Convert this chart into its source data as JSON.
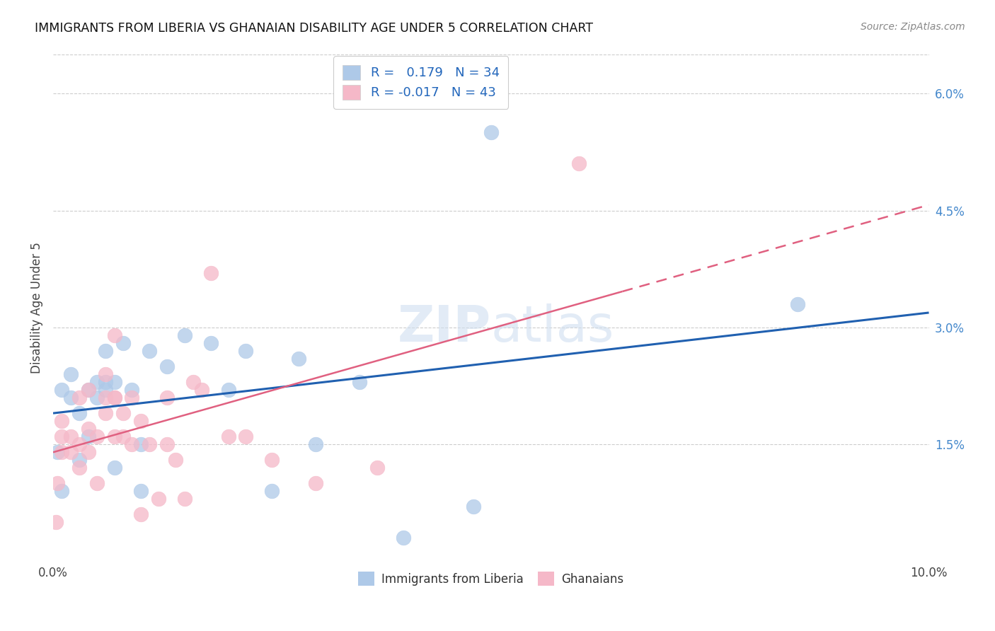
{
  "title": "IMMIGRANTS FROM LIBERIA VS GHANAIAN DISABILITY AGE UNDER 5 CORRELATION CHART",
  "source": "Source: ZipAtlas.com",
  "ylabel": "Disability Age Under 5",
  "xlim": [
    0.0,
    0.1
  ],
  "ylim": [
    0.0,
    0.065
  ],
  "xticks": [
    0.0,
    0.02,
    0.04,
    0.06,
    0.08,
    0.1
  ],
  "xticklabels": [
    "0.0%",
    "",
    "",
    "",
    "",
    "10.0%"
  ],
  "yticks_right": [
    0.015,
    0.03,
    0.045,
    0.06
  ],
  "yticklabels_right": [
    "1.5%",
    "3.0%",
    "4.5%",
    "6.0%"
  ],
  "grid_color": "#cccccc",
  "background_color": "#ffffff",
  "liberia_color": "#aec9e8",
  "ghana_color": "#f5b8c8",
  "liberia_line_color": "#2060b0",
  "ghana_line_color": "#e06080",
  "legend_R_liberia": "0.179",
  "legend_N_liberia": "34",
  "legend_R_ghana": "-0.017",
  "legend_N_ghana": "43",
  "liberia_x": [
    0.0005,
    0.001,
    0.001,
    0.002,
    0.002,
    0.003,
    0.003,
    0.004,
    0.004,
    0.005,
    0.005,
    0.006,
    0.006,
    0.006,
    0.007,
    0.007,
    0.008,
    0.009,
    0.01,
    0.01,
    0.011,
    0.013,
    0.015,
    0.018,
    0.02,
    0.022,
    0.025,
    0.028,
    0.03,
    0.035,
    0.04,
    0.048,
    0.05,
    0.085
  ],
  "liberia_y": [
    0.014,
    0.022,
    0.009,
    0.021,
    0.024,
    0.013,
    0.019,
    0.022,
    0.016,
    0.023,
    0.021,
    0.023,
    0.027,
    0.022,
    0.023,
    0.012,
    0.028,
    0.022,
    0.015,
    0.009,
    0.027,
    0.025,
    0.029,
    0.028,
    0.022,
    0.027,
    0.009,
    0.026,
    0.015,
    0.023,
    0.003,
    0.007,
    0.055,
    0.033
  ],
  "ghana_x": [
    0.0003,
    0.0005,
    0.001,
    0.001,
    0.001,
    0.002,
    0.002,
    0.003,
    0.003,
    0.003,
    0.004,
    0.004,
    0.004,
    0.005,
    0.005,
    0.006,
    0.006,
    0.006,
    0.007,
    0.007,
    0.007,
    0.007,
    0.008,
    0.008,
    0.009,
    0.009,
    0.01,
    0.01,
    0.011,
    0.012,
    0.013,
    0.013,
    0.014,
    0.015,
    0.016,
    0.017,
    0.018,
    0.02,
    0.022,
    0.025,
    0.03,
    0.037,
    0.06
  ],
  "ghana_y": [
    0.005,
    0.01,
    0.014,
    0.016,
    0.018,
    0.014,
    0.016,
    0.012,
    0.015,
    0.021,
    0.014,
    0.022,
    0.017,
    0.01,
    0.016,
    0.021,
    0.024,
    0.019,
    0.021,
    0.021,
    0.029,
    0.016,
    0.016,
    0.019,
    0.021,
    0.015,
    0.006,
    0.018,
    0.015,
    0.008,
    0.015,
    0.021,
    0.013,
    0.008,
    0.023,
    0.022,
    0.037,
    0.016,
    0.016,
    0.013,
    0.01,
    0.012,
    0.051
  ]
}
